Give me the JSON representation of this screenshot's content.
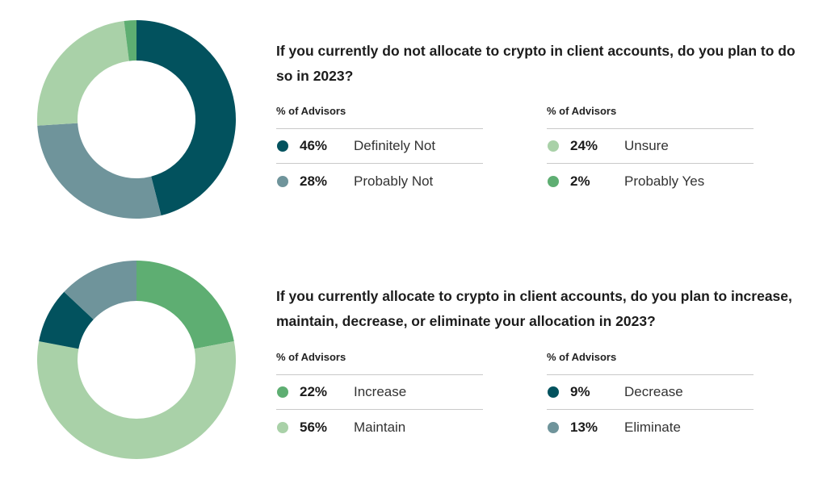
{
  "colors": {
    "dark_teal": "#02525E",
    "slate": "#6F949B",
    "light_green": "#A9D1A8",
    "green": "#5EAE72"
  },
  "panels": [
    {
      "question": "If you currently do not allocate to crypto in client accounts, do you plan to do so in 2023?",
      "left_header": "% of Advisors",
      "right_header": "% of Advisors",
      "left_items": [
        {
          "pct": "46%",
          "label": "Definitely Not",
          "color": "#02525E"
        },
        {
          "pct": "28%",
          "label": "Probably Not",
          "color": "#6F949B"
        }
      ],
      "right_items": [
        {
          "pct": "24%",
          "label": "Unsure",
          "color": "#A9D1A8"
        },
        {
          "pct": "2%",
          "label": "Probably Yes",
          "color": "#5EAE72"
        }
      ]
    },
    {
      "question": "If you currently allocate to crypto in client accounts, do you plan to increase, maintain, decrease, or eliminate your allocation in 2023?",
      "left_header": "% of Advisors",
      "right_header": "% of Advisors",
      "left_items": [
        {
          "pct": "22%",
          "label": "Increase",
          "color": "#5EAE72"
        },
        {
          "pct": "56%",
          "label": "Maintain",
          "color": "#A9D1A8"
        }
      ],
      "right_items": [
        {
          "pct": "9%",
          "label": "Decrease",
          "color": "#02525E"
        },
        {
          "pct": "13%",
          "label": "Eliminate",
          "color": "#6F949B"
        }
      ]
    }
  ],
  "chart_data": [
    {
      "type": "pie",
      "title": "If you currently do not allocate to crypto in client accounts, do you plan to do so in 2023?",
      "categories": [
        "Definitely Not",
        "Probably Not",
        "Unsure",
        "Probably Yes"
      ],
      "values": [
        46,
        28,
        24,
        2
      ],
      "colors": [
        "#02525E",
        "#6F949B",
        "#A9D1A8",
        "#5EAE72"
      ],
      "legend": "right"
    },
    {
      "type": "pie",
      "title": "If you currently allocate to crypto in client accounts, do you plan to increase, maintain, decrease, or eliminate your allocation in 2023?",
      "categories": [
        "Increase",
        "Maintain",
        "Decrease",
        "Eliminate"
      ],
      "values": [
        22,
        56,
        9,
        13
      ],
      "colors": [
        "#5EAE72",
        "#A9D1A8",
        "#02525E",
        "#6F949B"
      ],
      "legend": "right"
    }
  ]
}
